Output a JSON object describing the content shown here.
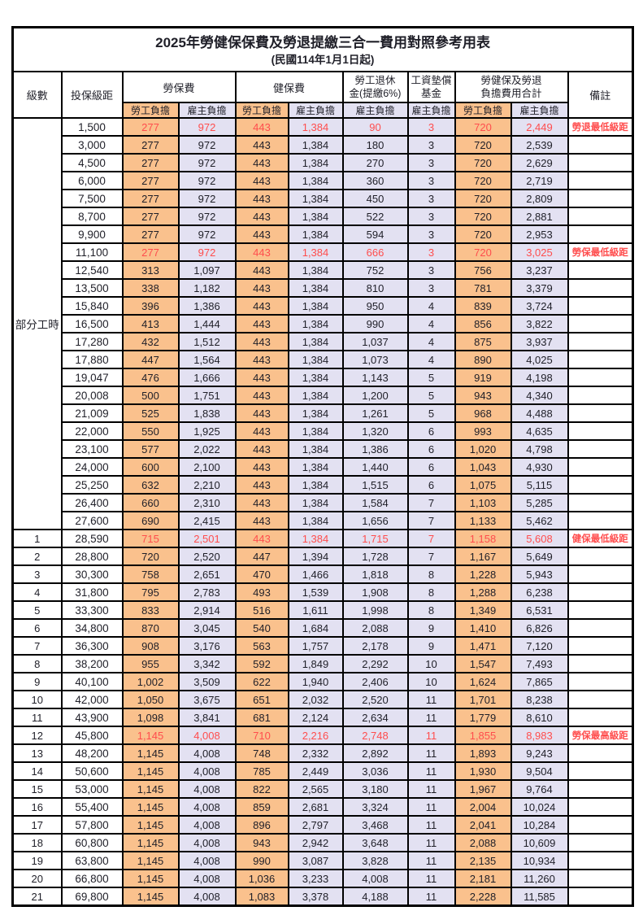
{
  "title": {
    "line1": "2025年勞健保保費及勞退提繳三合一費用對照參考用表",
    "line2": "(民國114年1月1日起)"
  },
  "header": {
    "level": "級數",
    "bracket": "投保級距",
    "labor_group": "勞保費",
    "health_group": "健保費",
    "pension_line1": "勞工退休",
    "pension_line2": "金(提繳6%)",
    "fund_line1": "工資墊償",
    "fund_line2": "基金",
    "total_line1": "勞健保及勞退",
    "total_line2": "負擔費用合計",
    "remark": "備註",
    "employee_label": "勞工負擔",
    "employer_label": "雇主負擔"
  },
  "colors": {
    "employee_cell_bg": "#fac18d",
    "employer_cell_bg": "#e3e1f2",
    "highlight_text": "#ff4d4d",
    "border": "#000000",
    "body_text": "#1f1f28"
  },
  "part_time_label": "部分工時",
  "part_time_row_count": 23,
  "row_columns": [
    "level",
    "bracket",
    "labor_employee",
    "labor_employer",
    "health_employee",
    "health_employer",
    "pension_employer",
    "fund_employer",
    "total_employee",
    "total_employer",
    "remark",
    "is_red"
  ],
  "rows": [
    [
      "",
      "1,500",
      "277",
      "972",
      "443",
      "1,384",
      "90",
      "3",
      "720",
      "2,449",
      "勞退最低級距",
      true
    ],
    [
      "",
      "3,000",
      "277",
      "972",
      "443",
      "1,384",
      "180",
      "3",
      "720",
      "2,539",
      "",
      false
    ],
    [
      "",
      "4,500",
      "277",
      "972",
      "443",
      "1,384",
      "270",
      "3",
      "720",
      "2,629",
      "",
      false
    ],
    [
      "",
      "6,000",
      "277",
      "972",
      "443",
      "1,384",
      "360",
      "3",
      "720",
      "2,719",
      "",
      false
    ],
    [
      "",
      "7,500",
      "277",
      "972",
      "443",
      "1,384",
      "450",
      "3",
      "720",
      "2,809",
      "",
      false
    ],
    [
      "",
      "8,700",
      "277",
      "972",
      "443",
      "1,384",
      "522",
      "3",
      "720",
      "2,881",
      "",
      false
    ],
    [
      "",
      "9,900",
      "277",
      "972",
      "443",
      "1,384",
      "594",
      "3",
      "720",
      "2,953",
      "",
      false
    ],
    [
      "",
      "11,100",
      "277",
      "972",
      "443",
      "1,384",
      "666",
      "3",
      "720",
      "3,025",
      "勞保最低級距",
      true
    ],
    [
      "",
      "12,540",
      "313",
      "1,097",
      "443",
      "1,384",
      "752",
      "3",
      "756",
      "3,237",
      "",
      false
    ],
    [
      "",
      "13,500",
      "338",
      "1,182",
      "443",
      "1,384",
      "810",
      "3",
      "781",
      "3,379",
      "",
      false
    ],
    [
      "",
      "15,840",
      "396",
      "1,386",
      "443",
      "1,384",
      "950",
      "4",
      "839",
      "3,724",
      "",
      false
    ],
    [
      "",
      "16,500",
      "413",
      "1,444",
      "443",
      "1,384",
      "990",
      "4",
      "856",
      "3,822",
      "",
      false
    ],
    [
      "",
      "17,280",
      "432",
      "1,512",
      "443",
      "1,384",
      "1,037",
      "4",
      "875",
      "3,937",
      "",
      false
    ],
    [
      "",
      "17,880",
      "447",
      "1,564",
      "443",
      "1,384",
      "1,073",
      "4",
      "890",
      "4,025",
      "",
      false
    ],
    [
      "",
      "19,047",
      "476",
      "1,666",
      "443",
      "1,384",
      "1,143",
      "5",
      "919",
      "4,198",
      "",
      false
    ],
    [
      "",
      "20,008",
      "500",
      "1,751",
      "443",
      "1,384",
      "1,200",
      "5",
      "943",
      "4,340",
      "",
      false
    ],
    [
      "",
      "21,009",
      "525",
      "1,838",
      "443",
      "1,384",
      "1,261",
      "5",
      "968",
      "4,488",
      "",
      false
    ],
    [
      "",
      "22,000",
      "550",
      "1,925",
      "443",
      "1,384",
      "1,320",
      "6",
      "993",
      "4,635",
      "",
      false
    ],
    [
      "",
      "23,100",
      "577",
      "2,022",
      "443",
      "1,384",
      "1,386",
      "6",
      "1,020",
      "4,798",
      "",
      false
    ],
    [
      "",
      "24,000",
      "600",
      "2,100",
      "443",
      "1,384",
      "1,440",
      "6",
      "1,043",
      "4,930",
      "",
      false
    ],
    [
      "",
      "25,250",
      "632",
      "2,210",
      "443",
      "1,384",
      "1,515",
      "6",
      "1,075",
      "5,115",
      "",
      false
    ],
    [
      "",
      "26,400",
      "660",
      "2,310",
      "443",
      "1,384",
      "1,584",
      "7",
      "1,103",
      "5,285",
      "",
      false
    ],
    [
      "",
      "27,600",
      "690",
      "2,415",
      "443",
      "1,384",
      "1,656",
      "7",
      "1,133",
      "5,462",
      "",
      false
    ],
    [
      "1",
      "28,590",
      "715",
      "2,501",
      "443",
      "1,384",
      "1,715",
      "7",
      "1,158",
      "5,608",
      "健保最低級距",
      true
    ],
    [
      "2",
      "28,800",
      "720",
      "2,520",
      "447",
      "1,394",
      "1,728",
      "7",
      "1,167",
      "5,649",
      "",
      false
    ],
    [
      "3",
      "30,300",
      "758",
      "2,651",
      "470",
      "1,466",
      "1,818",
      "8",
      "1,228",
      "5,943",
      "",
      false
    ],
    [
      "4",
      "31,800",
      "795",
      "2,783",
      "493",
      "1,539",
      "1,908",
      "8",
      "1,288",
      "6,238",
      "",
      false
    ],
    [
      "5",
      "33,300",
      "833",
      "2,914",
      "516",
      "1,611",
      "1,998",
      "8",
      "1,349",
      "6,531",
      "",
      false
    ],
    [
      "6",
      "34,800",
      "870",
      "3,045",
      "540",
      "1,684",
      "2,088",
      "9",
      "1,410",
      "6,826",
      "",
      false
    ],
    [
      "7",
      "36,300",
      "908",
      "3,176",
      "563",
      "1,757",
      "2,178",
      "9",
      "1,471",
      "7,120",
      "",
      false
    ],
    [
      "8",
      "38,200",
      "955",
      "3,342",
      "592",
      "1,849",
      "2,292",
      "10",
      "1,547",
      "7,493",
      "",
      false
    ],
    [
      "9",
      "40,100",
      "1,002",
      "3,509",
      "622",
      "1,940",
      "2,406",
      "10",
      "1,624",
      "7,865",
      "",
      false
    ],
    [
      "10",
      "42,000",
      "1,050",
      "3,675",
      "651",
      "2,032",
      "2,520",
      "11",
      "1,701",
      "8,238",
      "",
      false
    ],
    [
      "11",
      "43,900",
      "1,098",
      "3,841",
      "681",
      "2,124",
      "2,634",
      "11",
      "1,779",
      "8,610",
      "",
      false
    ],
    [
      "12",
      "45,800",
      "1,145",
      "4,008",
      "710",
      "2,216",
      "2,748",
      "11",
      "1,855",
      "8,983",
      "勞保最高級距",
      true
    ],
    [
      "13",
      "48,200",
      "1,145",
      "4,008",
      "748",
      "2,332",
      "2,892",
      "11",
      "1,893",
      "9,243",
      "",
      false
    ],
    [
      "14",
      "50,600",
      "1,145",
      "4,008",
      "785",
      "2,449",
      "3,036",
      "11",
      "1,930",
      "9,504",
      "",
      false
    ],
    [
      "15",
      "53,000",
      "1,145",
      "4,008",
      "822",
      "2,565",
      "3,180",
      "11",
      "1,967",
      "9,764",
      "",
      false
    ],
    [
      "16",
      "55,400",
      "1,145",
      "4,008",
      "859",
      "2,681",
      "3,324",
      "11",
      "2,004",
      "10,024",
      "",
      false
    ],
    [
      "17",
      "57,800",
      "1,145",
      "4,008",
      "896",
      "2,797",
      "3,468",
      "11",
      "2,041",
      "10,284",
      "",
      false
    ],
    [
      "18",
      "60,800",
      "1,145",
      "4,008",
      "943",
      "2,942",
      "3,648",
      "11",
      "2,088",
      "10,609",
      "",
      false
    ],
    [
      "19",
      "63,800",
      "1,145",
      "4,008",
      "990",
      "3,087",
      "3,828",
      "11",
      "2,135",
      "10,934",
      "",
      false
    ],
    [
      "20",
      "66,800",
      "1,145",
      "4,008",
      "1,036",
      "3,233",
      "4,008",
      "11",
      "2,181",
      "11,260",
      "",
      false
    ],
    [
      "21",
      "69,800",
      "1,145",
      "4,008",
      "1,083",
      "3,378",
      "4,188",
      "11",
      "2,228",
      "11,585",
      "",
      false
    ]
  ]
}
